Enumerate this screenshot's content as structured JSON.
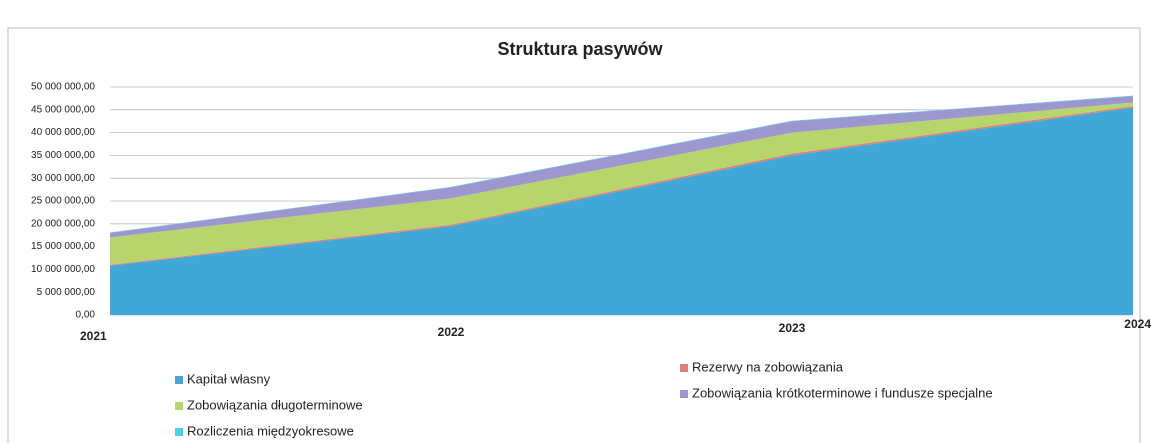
{
  "chart_data": {
    "type": "stacked_area",
    "title": "Struktura pasywów",
    "categories": [
      "2021",
      "2022",
      "2023",
      "2024"
    ],
    "series": [
      {
        "name": "Kapitał własny",
        "color": "#41a7d6",
        "values": [
          10800000,
          19500000,
          35000000,
          45500000
        ]
      },
      {
        "name": "Rezerwy na zobowiązania",
        "color": "#e07f7a",
        "values": [
          200000,
          300000,
          400000,
          300000
        ]
      },
      {
        "name": "Zobowiązania długoterminowe",
        "color": "#b7d56c",
        "values": [
          6000000,
          5800000,
          4600000,
          800000
        ]
      },
      {
        "name": "Zobowiązania krótkoterminowe i fundusze specjalne",
        "color": "#9d97cf",
        "values": [
          1000000,
          2400000,
          2500000,
          1400000
        ]
      },
      {
        "name": "Rozliczenia międzyokresowe",
        "color": "#4ccfe0",
        "values": [
          100000,
          100000,
          100000,
          100000
        ]
      }
    ],
    "ylim": [
      0,
      50000000
    ],
    "yticks": [
      {
        "value": 0,
        "label": "0,00"
      },
      {
        "value": 5000000,
        "label": "5 000 000,00"
      },
      {
        "value": 10000000,
        "label": "10 000 000,00"
      },
      {
        "value": 15000000,
        "label": "15 000 000,00"
      },
      {
        "value": 20000000,
        "label": "20 000 000,00"
      },
      {
        "value": 25000000,
        "label": "25 000 000,00"
      },
      {
        "value": 30000000,
        "label": "30 000 000,00"
      },
      {
        "value": 35000000,
        "label": "35 000 000,00"
      },
      {
        "value": 40000000,
        "label": "40 000 000,00"
      },
      {
        "value": 45000000,
        "label": "45 000 000,00"
      },
      {
        "value": 50000000,
        "label": "50 000 000,00"
      }
    ],
    "grid": true
  }
}
